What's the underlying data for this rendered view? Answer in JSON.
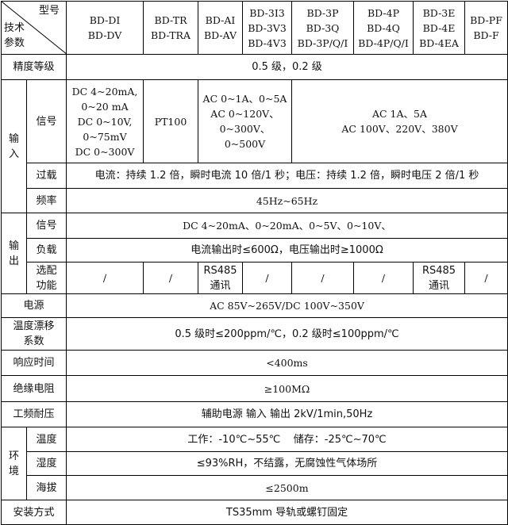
{
  "header": {
    "corner_top": "型号",
    "corner_bottom": "技术\n参数",
    "models": [
      "BD-DI\nBD-DV",
      "BD-TR\nBD-TRA",
      "BD-AI\nBD-AV",
      "BD-3I3\nBD-3V3\nBD-4V3",
      "BD-3P\nBD-3Q\nBD-3P/Q/I",
      "BD-4P\nBD-4Q\nBD-4P/Q/I",
      "BD-3E\nBD-4E\nBD-4EA",
      "BD-PF\nBD-F"
    ]
  },
  "accuracy": {
    "label": "精度等级",
    "value": "0.5 级，0.2 级"
  },
  "input": {
    "label": "输\n入",
    "signal": {
      "label": "信号",
      "di": "DC 4~20mA,\n0~20 mA\nDC 0~10V,\n0~75mV\nDC 0~300V",
      "tr": "PT100",
      "ai": "AC 0~1A、0~5A\nAC 0~120V、\n0~300V、0~500V",
      "rest": "AC 1A、5A\nAC 100V、220V、380V"
    },
    "overload": {
      "label": "过载",
      "value": "电流：持续 1.2 倍，瞬时电流 10 倍/1 秒；电压：持续 1.2 倍，瞬时电压 2 倍/1 秒"
    },
    "frequency": {
      "label": "频率",
      "value": "45Hz~65Hz"
    }
  },
  "output": {
    "label": "输\n出",
    "signal": {
      "label": "信号",
      "value": "DC 4~20mA、0~20mA、0~5V、0~10V、"
    },
    "load": {
      "label": "负载",
      "value": "电流输出时≤600Ω，电压输出时≥1000Ω"
    },
    "options": {
      "label": "选配\n功能",
      "values": [
        "/",
        "/",
        "RS485\n通讯",
        "/",
        "/",
        "/",
        "RS485\n通讯",
        "/"
      ]
    }
  },
  "power": {
    "label": "电源",
    "value": "AC 85V~265V/DC 100V~350V"
  },
  "drift": {
    "label": "温度漂移\n系数",
    "value": "0.5 级时≤200ppm/℃，0.2 级时≤100ppm/℃"
  },
  "response": {
    "label": "响应时间",
    "value": "<400ms"
  },
  "insulation": {
    "label": "绝缘电阻",
    "value": "≥100MΩ"
  },
  "withstand": {
    "label": "工频耐压",
    "value": "辅助电源 输入 输出 2kV/1min,50Hz"
  },
  "env": {
    "label": "环\n境",
    "temperature": {
      "label": "温度",
      "value": "工作：-10℃~55℃    储存：-25℃~70℃"
    },
    "humidity": {
      "label": "湿度",
      "value": "≤93%RH，不结露，无腐蚀性气体场所"
    },
    "altitude": {
      "label": "海拔",
      "value": "≤2500m"
    }
  },
  "mounting": {
    "label": "安装方式",
    "value": "TS35mm 导轨或螺钉固定"
  }
}
